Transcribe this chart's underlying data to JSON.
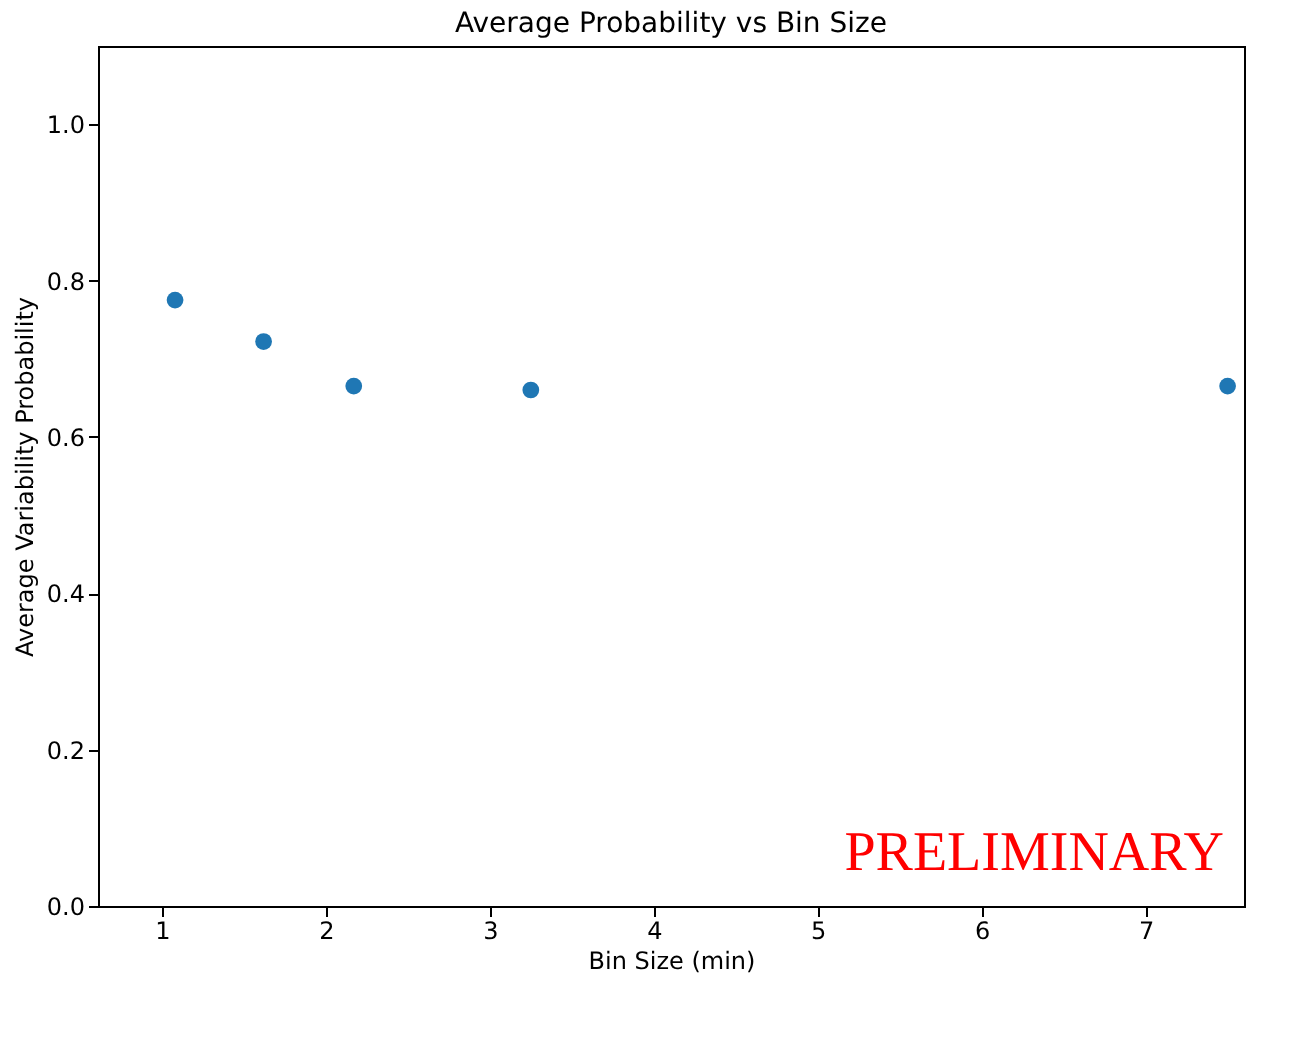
{
  "chart_data": {
    "type": "scatter",
    "title": "Average Probability vs Bin Size",
    "xlabel": "Bin Size (min)",
    "ylabel": "Average Variability Probability",
    "x": [
      1.08,
      1.62,
      2.17,
      3.25,
      7.5
    ],
    "series": [
      {
        "color": "#1f77b4",
        "values": [
          0.775,
          0.722,
          0.665,
          0.66,
          0.665
        ]
      }
    ],
    "xlim": [
      0.61,
      7.6
    ],
    "xticks": [
      1,
      2,
      3,
      4,
      5,
      6,
      7
    ],
    "ylim": [
      0,
      1.1
    ],
    "yticks": [
      {
        "value": 0,
        "label": "0.0"
      },
      {
        "value": 0.2,
        "label": "0.2"
      },
      {
        "value": 0.4,
        "label": "0.4"
      },
      {
        "value": 0.6,
        "label": "0.6"
      },
      {
        "value": 0.8,
        "label": "0.8"
      },
      {
        "value": 1.0,
        "label": "1.0"
      }
    ],
    "annotations": [
      "PRELIMINARY"
    ],
    "marker": "circle",
    "grid": false
  }
}
